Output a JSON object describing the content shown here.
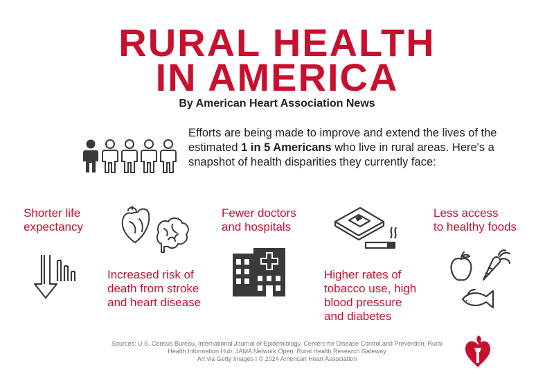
{
  "header": {
    "title_line1": "RURAL HEALTH",
    "title_line2": "IN AMERICA",
    "byline": "By American Heart Association News"
  },
  "intro": {
    "before": "Efforts are being made to improve and extend the lives of the estimated ",
    "emphasis": "1 in 5 Americans",
    "after": " who live in rural areas. Here's a snapshot of health disparities they currently face:"
  },
  "disparities": [
    {
      "line1": "Shorter life",
      "line2": "expectancy",
      "icon": "down-arrow-bar-chart-icon"
    },
    {
      "line1": "Increased risk of",
      "line2": "death from stroke",
      "line3": "and heart disease",
      "icon": "heart-brain-icon"
    },
    {
      "line1": "Fewer doctors",
      "line2": "and hospitals",
      "icon": "hospital-building-icon"
    },
    {
      "line1": "Higher rates of",
      "line2": "tobacco use, high",
      "line3": "blood pressure",
      "line4": "and diabetes",
      "icon": "glucose-meter-cigarette-icon"
    },
    {
      "line1": "Less access",
      "line2": "to healthy foods",
      "icon": "apple-carrot-fish-icon"
    }
  ],
  "footer": {
    "sources_line1": "Sources: U.S. Census Bureau, International Journal of Epidemiology, Centers for Disease Control and Prevention, Rural",
    "sources_line2": "Health Information Hub, JAMA Network Open, Rural Health Research Gateway",
    "credit": "Art via Getty Images | © 2024 American Heart Association"
  },
  "colors": {
    "accent_red": "#c8102e",
    "icon_gray": "#3a3a3a",
    "text_dark": "#222222"
  },
  "icons": [
    "people-icon",
    "heart-torch-logo-icon"
  ]
}
